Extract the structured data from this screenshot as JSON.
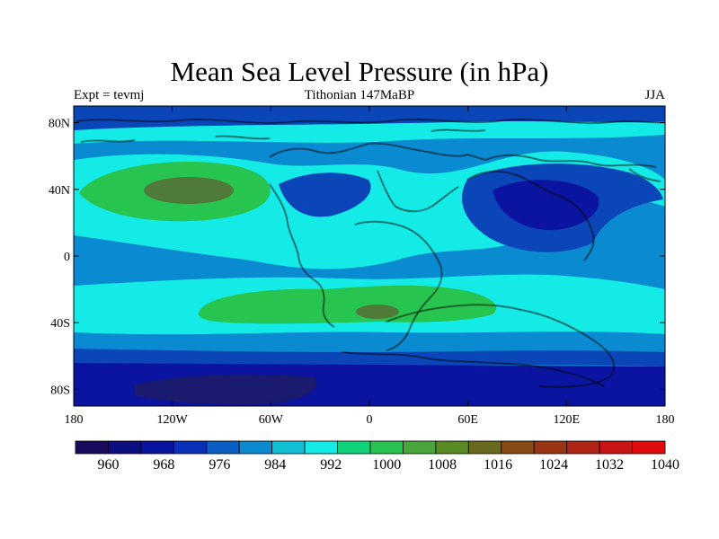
{
  "title": "Mean Sea Level Pressure (in hPa)",
  "left_label": "Expt = tevmj",
  "center_label": "Tithonian 147MaBP",
  "right_label": "JJA",
  "lat_ticks": [
    {
      "value": 80,
      "label": "80N"
    },
    {
      "value": 40,
      "label": "40N"
    },
    {
      "value": 0,
      "label": "0"
    },
    {
      "value": -40,
      "label": "40S"
    },
    {
      "value": -80,
      "label": "80S"
    }
  ],
  "lon_ticks": [
    {
      "value": -180,
      "label": "180"
    },
    {
      "value": -120,
      "label": "120W"
    },
    {
      "value": -60,
      "label": "60W"
    },
    {
      "value": 0,
      "label": "0"
    },
    {
      "value": 60,
      "label": "60E"
    },
    {
      "value": 120,
      "label": "120E"
    },
    {
      "value": 180,
      "label": "180"
    }
  ],
  "colorbar": {
    "colors": [
      "#1a0a5e",
      "#0d0e80",
      "#0a14a0",
      "#0a2fb8",
      "#0a5ec4",
      "#0a8ad0",
      "#12c0d6",
      "#14eae6",
      "#0fd27a",
      "#28c450",
      "#4aa63a",
      "#5a8a24",
      "#6a6a1e",
      "#8a4a16",
      "#9a3414",
      "#b02414",
      "#c81414",
      "#e00c0c"
    ],
    "labels": [
      "960",
      "968",
      "976",
      "984",
      "992",
      "1000",
      "1008",
      "1016",
      "1024",
      "1032",
      "1040"
    ]
  },
  "map_colors": {
    "deep": "#1a1a6e",
    "navy": "#0a14a0",
    "blue": "#0a46b8",
    "mid": "#0a8ad0",
    "cyan": "#14eae6",
    "green": "#28c450",
    "olive": "#4f7a3a",
    "coast": "#000000"
  }
}
